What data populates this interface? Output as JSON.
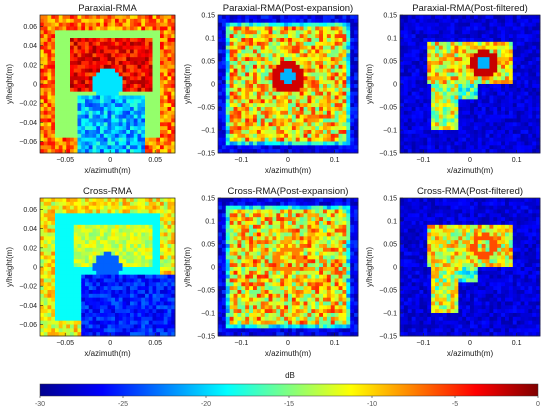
{
  "figure": {
    "colormap": "jet",
    "colorbar": {
      "label": "dB",
      "min": -30,
      "max": 0,
      "ticks": [
        -30,
        -25,
        -20,
        -15,
        -10,
        -5,
        0
      ]
    }
  },
  "chart_data": [
    {
      "type": "heatmap",
      "title": "Paraxial-RMA",
      "xlabel": "x/azimuth(m)",
      "ylabel": "y/height(m)",
      "xlim": [
        -0.078,
        0.072
      ],
      "ylim": [
        -0.072,
        0.072
      ],
      "xticks": [
        -0.05,
        0,
        0.05
      ],
      "xticklabels": [
        "−0.05",
        "0",
        "0.05"
      ],
      "yticks": [
        0.06,
        0.04,
        0.02,
        0,
        -0.02,
        -0.04,
        -0.06
      ],
      "yticklabels": [
        "0.06",
        "0.04",
        "0.02",
        "0",
        "−0.02",
        "−0.04",
        "−0.06"
      ],
      "value_range_db": [
        -30,
        0
      ],
      "grid": false
    },
    {
      "type": "heatmap",
      "title": "Paraxial-RMA(Post-expansion)",
      "xlabel": "x/azimuth(m)",
      "ylabel": "y/height(m)",
      "xlim": [
        -0.15,
        0.15
      ],
      "ylim": [
        -0.15,
        0.15
      ],
      "xticks": [
        -0.1,
        0,
        0.1
      ],
      "xticklabels": [
        "−0.1",
        "0",
        "0.1"
      ],
      "yticks": [
        0.15,
        0.1,
        0.05,
        0,
        -0.05,
        -0.1,
        -0.15
      ],
      "yticklabels": [
        "0.15",
        "0.1",
        "0.05",
        "0",
        "−0.05",
        "−0.1",
        "−0.15"
      ],
      "value_range_db": [
        -30,
        0
      ],
      "grid": false
    },
    {
      "type": "heatmap",
      "title": "Paraxial-RMA(Post-filtered)",
      "xlabel": "x/azimuth(m)",
      "ylabel": "y/height(m)",
      "xlim": [
        -0.15,
        0.15
      ],
      "ylim": [
        -0.15,
        0.15
      ],
      "xticks": [
        -0.1,
        0,
        0.1
      ],
      "xticklabels": [
        "−0.1",
        "0",
        "0.1"
      ],
      "yticks": [
        0.15,
        0.1,
        0.05,
        0,
        -0.05,
        -0.1,
        -0.15
      ],
      "yticklabels": [
        "0.15",
        "0.1",
        "0.05",
        "0",
        "−0.05",
        "−0.1",
        "−0.15"
      ],
      "value_range_db": [
        -30,
        0
      ],
      "grid": false
    },
    {
      "type": "heatmap",
      "title": "Cross-RMA",
      "xlabel": "x/azimuth(m)",
      "ylabel": "y/height(m)",
      "xlim": [
        -0.078,
        0.072
      ],
      "ylim": [
        -0.072,
        0.072
      ],
      "xticks": [
        -0.05,
        0,
        0.05
      ],
      "xticklabels": [
        "−0.05",
        "0",
        "0.05"
      ],
      "yticks": [
        0.06,
        0.04,
        0.02,
        0,
        -0.02,
        -0.04,
        -0.06
      ],
      "yticklabels": [
        "0.06",
        "0.04",
        "0.02",
        "0",
        "−0.02",
        "−0.04",
        "−0.06"
      ],
      "value_range_db": [
        -30,
        0
      ],
      "grid": false
    },
    {
      "type": "heatmap",
      "title": "Cross-RMA(Post-expansion)",
      "xlabel": "x/azimuth(m)",
      "ylabel": "y/height(m)",
      "xlim": [
        -0.15,
        0.15
      ],
      "ylim": [
        -0.15,
        0.15
      ],
      "xticks": [
        -0.1,
        0,
        0.1
      ],
      "xticklabels": [
        "−0.1",
        "0",
        "0.1"
      ],
      "yticks": [
        0.15,
        0.1,
        0.05,
        0,
        -0.05,
        -0.1,
        -0.15
      ],
      "yticklabels": [
        "0.15",
        "0.1",
        "0.05",
        "0",
        "−0.05",
        "−0.1",
        "−0.15"
      ],
      "value_range_db": [
        -30,
        0
      ],
      "grid": false
    },
    {
      "type": "heatmap",
      "title": "Cross-RMA(Post-filtered)",
      "xlabel": "x/azimuth(m)",
      "ylabel": "y/height(m)",
      "xlim": [
        -0.15,
        0.15
      ],
      "ylim": [
        -0.15,
        0.15
      ],
      "xticks": [
        -0.1,
        0,
        0.1
      ],
      "xticklabels": [
        "−0.1",
        "0",
        "0.1"
      ],
      "yticks": [
        0.15,
        0.1,
        0.05,
        0,
        -0.05,
        -0.1,
        -0.15
      ],
      "yticklabels": [
        "0.15",
        "0.1",
        "0.05",
        "0",
        "−0.05",
        "−0.1",
        "−0.15"
      ],
      "value_range_db": [
        -30,
        0
      ],
      "grid": false
    }
  ]
}
